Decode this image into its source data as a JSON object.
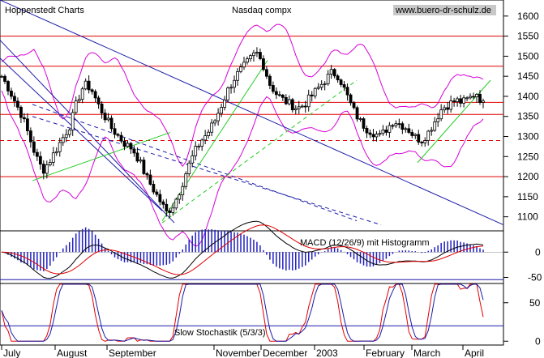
{
  "chart_data": {
    "type": "candlestick",
    "title": "Nasdaq compx",
    "source_label": "Hoppenstedt Charts",
    "watermark": "www.buero-dr-schulz.de",
    "months": [
      "July",
      "August",
      "September",
      "November",
      "December",
      "2003",
      "February",
      "March",
      "April"
    ],
    "price_axis": {
      "ticks": [
        "1600",
        "1550",
        "1500",
        "1450",
        "1400",
        "1350",
        "1300",
        "1250",
        "1200",
        "1150",
        "1100"
      ],
      "range": [
        1065,
        1640
      ]
    },
    "horizontal_levels": [
      1550,
      1475,
      1385,
      1355,
      1200
    ],
    "dashed_level": 1290,
    "price_path": [
      1450,
      1420,
      1385,
      1350,
      1300,
      1250,
      1215,
      1240,
      1270,
      1300,
      1330,
      1390,
      1430,
      1420,
      1380,
      1350,
      1320,
      1300,
      1280,
      1270,
      1240,
      1200,
      1170,
      1140,
      1110,
      1130,
      1170,
      1220,
      1260,
      1290,
      1310,
      1340,
      1380,
      1420,
      1450,
      1470,
      1490,
      1510,
      1480,
      1430,
      1405,
      1390,
      1380,
      1370,
      1380,
      1400,
      1420,
      1440,
      1460,
      1450,
      1410,
      1370,
      1340,
      1320,
      1310,
      1300,
      1320,
      1340,
      1330,
      1320,
      1300,
      1290,
      1310,
      1340,
      1370,
      1380,
      1390,
      1385,
      1395,
      1410,
      1380
    ],
    "macd": {
      "label": "MACD (12/26/9) mit Histogramm",
      "ticks": [
        "0",
        "-50"
      ],
      "range": [
        -62,
        42
      ]
    },
    "stochastic": {
      "label": "Slow Stochastik (5/3/3)",
      "ticks": [
        "50",
        "0"
      ],
      "range": [
        -5,
        75
      ],
      "levels": [
        80,
        20
      ]
    },
    "colors": {
      "candle": "#000000",
      "level_line": "#e00000",
      "band": "#d600d6",
      "downtrend": "#1a1aa8",
      "uptrend": "#22cc22",
      "macd_line": "#000000",
      "signal_line": "#e00000",
      "histogram": "#2020c0",
      "stoch_k": "#e00000",
      "stoch_d": "#1a1aa8"
    }
  }
}
